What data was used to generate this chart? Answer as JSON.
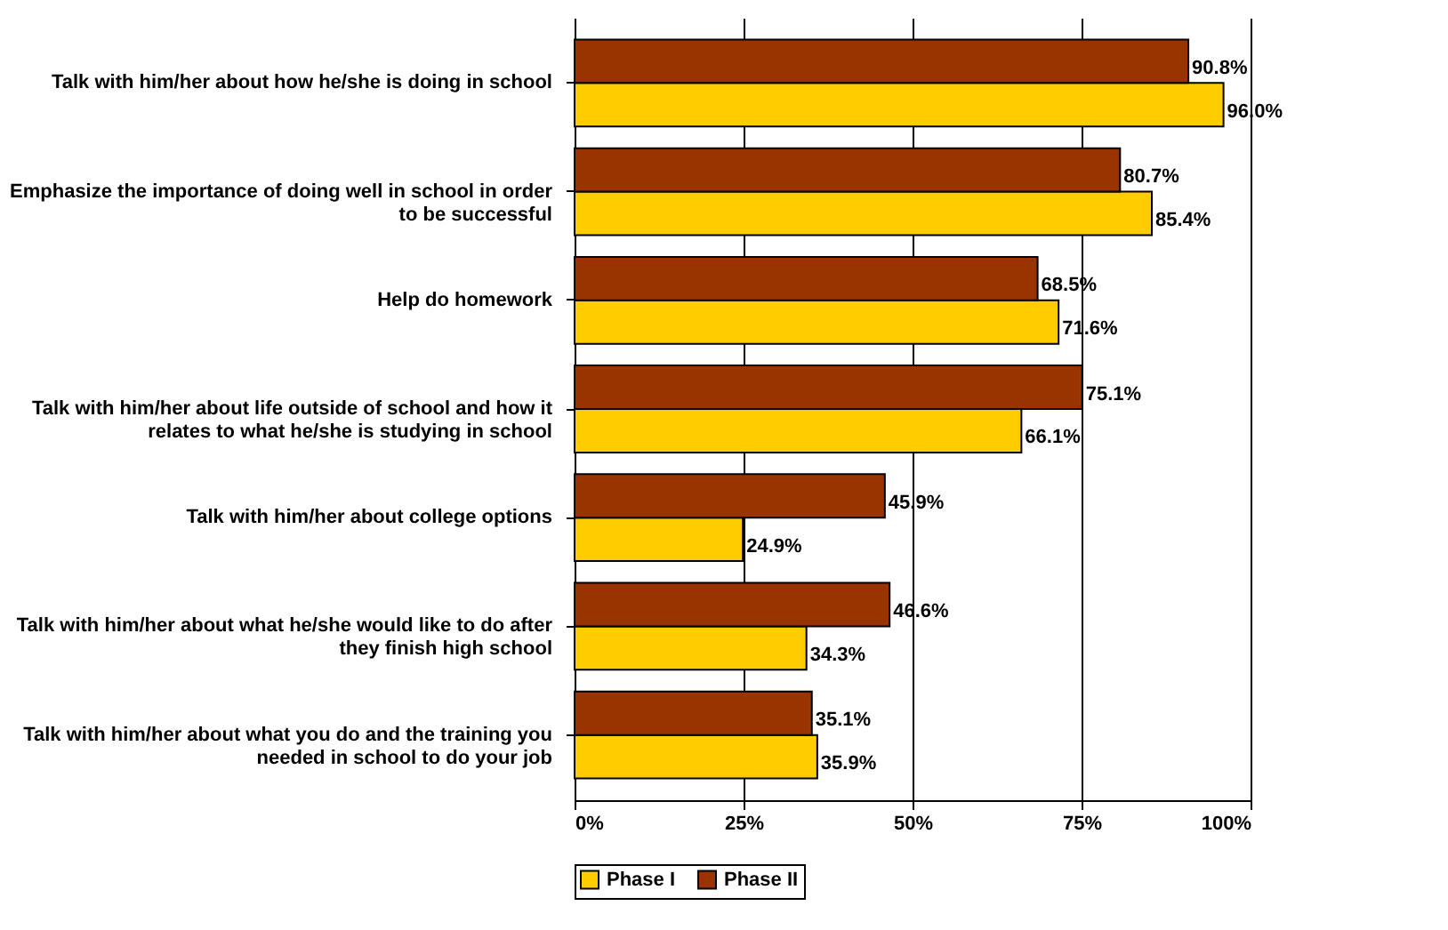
{
  "chart_data": {
    "type": "bar",
    "orientation": "horizontal",
    "categories": [
      "Talk with him/her about how he/she is doing in school",
      "Emphasize the importance of doing well in school in order to be successful",
      "Help do homework",
      "Talk with him/her about life outside of school and how it relates to what he/she is studying in school",
      "Talk with him/her about college options",
      "Talk with him/her about what he/she would like to do after they finish high school",
      "Talk with him/her about what you do and the training you needed in school to do your job"
    ],
    "series": [
      {
        "name": "Phase I",
        "color": "#ffcc00",
        "values": [
          96.0,
          85.4,
          71.6,
          66.1,
          24.9,
          34.3,
          35.9
        ],
        "value_labels": [
          "96.0%",
          "85.4%",
          "71.6%",
          "66.1%",
          "24.9%",
          "34.3%",
          "35.9%"
        ]
      },
      {
        "name": "Phase II",
        "color": "#993300",
        "values": [
          90.8,
          80.7,
          68.5,
          75.1,
          45.9,
          46.6,
          35.1
        ],
        "value_labels": [
          "90.8%",
          "80.7%",
          "68.5%",
          "75.1%",
          "45.9%",
          "46.6%",
          "35.1%"
        ]
      }
    ],
    "xlim": [
      0,
      100
    ],
    "xticks": [
      {
        "value": 0,
        "label": "0%"
      },
      {
        "value": 25,
        "label": "25%"
      },
      {
        "value": 50,
        "label": "50%"
      },
      {
        "value": 75,
        "label": "75%"
      },
      {
        "value": 100,
        "label": "100%"
      }
    ],
    "grid": "x",
    "legend": "bottom"
  }
}
